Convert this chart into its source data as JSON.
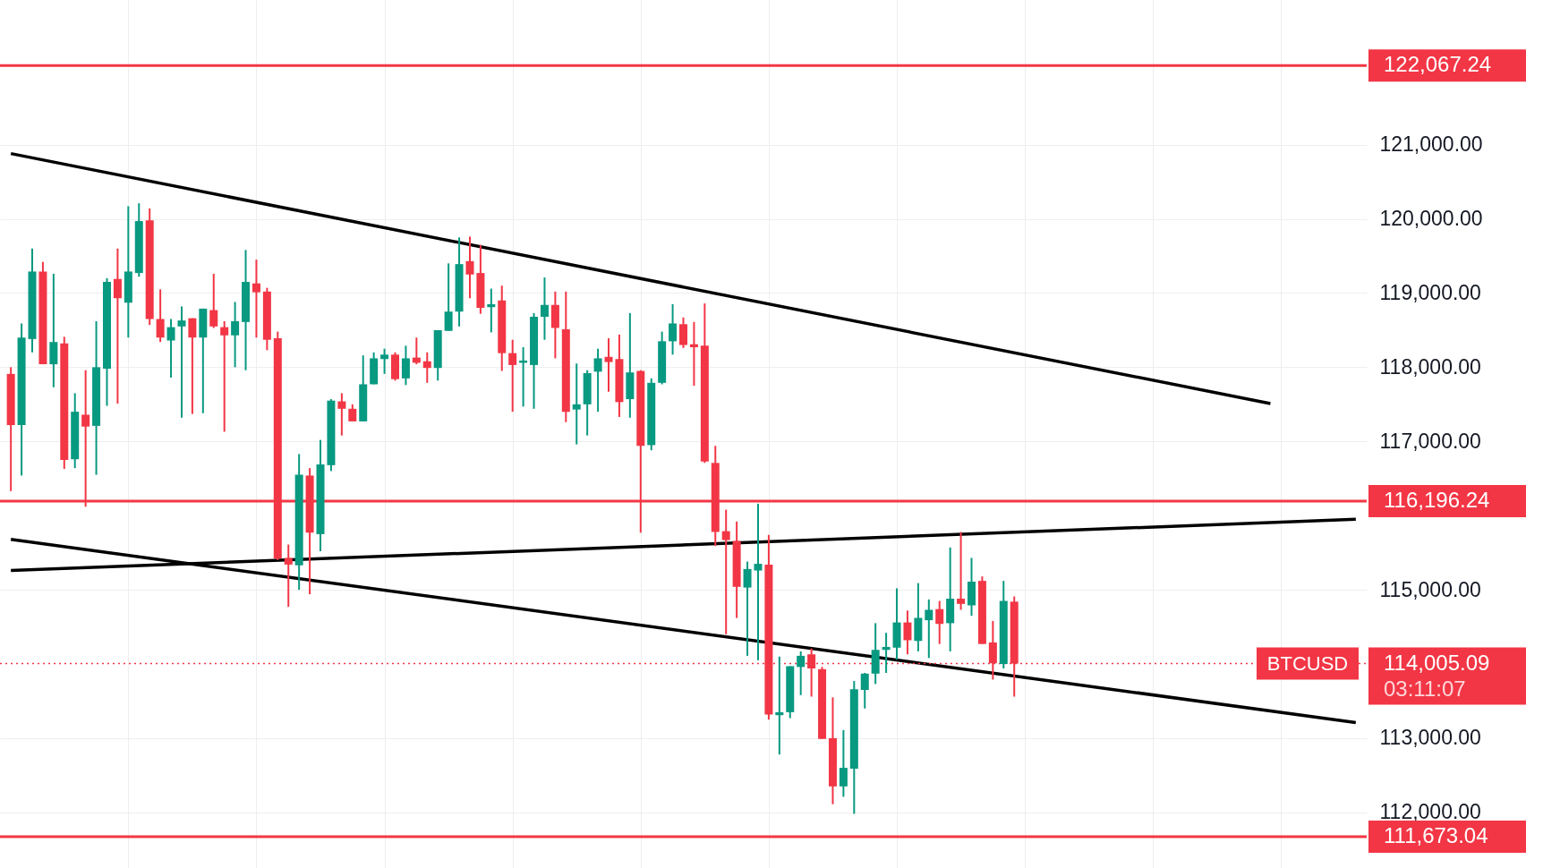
{
  "chart_data": {
    "type": "candlestick",
    "categories": [
      null,
      null,
      null,
      null,
      null,
      null,
      null,
      null,
      null,
      null,
      null,
      null,
      null,
      null,
      null,
      null,
      null,
      null,
      null,
      null,
      null,
      null,
      null,
      null,
      null,
      null,
      null,
      null,
      null,
      null,
      null,
      null,
      null,
      null,
      null,
      null,
      null,
      null,
      null,
      null,
      null,
      null,
      null,
      null,
      null,
      null,
      null,
      null,
      null,
      null,
      null,
      null,
      null,
      null,
      null,
      null,
      null,
      null,
      null,
      null,
      null,
      null,
      null,
      null,
      null,
      null,
      null,
      null,
      null,
      null,
      null,
      null,
      null,
      null,
      null,
      null,
      null,
      null,
      null,
      null,
      null,
      null,
      null,
      null,
      null,
      null,
      null,
      null,
      null,
      null,
      null,
      null,
      null,
      null,
      null,
      null,
      null,
      null,
      null,
      null,
      null,
      null,
      null,
      null,
      null,
      null,
      null,
      null,
      null,
      null,
      null,
      null,
      null,
      null,
      null,
      null,
      null,
      null,
      null,
      null,
      null,
      null,
      null,
      null,
      null,
      null,
      null
    ],
    "colors": [
      "#f23645",
      "#089981",
      "#089981",
      "#f23645",
      "#089981",
      "#f23645",
      "#089981",
      "#f23645",
      "#089981",
      "#089981",
      "#f23645",
      "#089981",
      "#089981",
      "#f23645",
      "#f23645",
      "#089981",
      "#089981",
      "#f23645",
      "#089981",
      "#f23645",
      "#f23645",
      "#089981",
      "#089981",
      "#f23645",
      "#f23645",
      "#f23645",
      "#f23645",
      "#089981",
      "#f23645",
      "#089981",
      "#089981",
      "#f23645",
      "#f23645",
      "#089981",
      "#089981",
      "#089981",
      "#f23645",
      "#089981",
      "#f23645",
      "#f23645",
      "#089981",
      "#089981",
      "#089981",
      "#f23645",
      "#f23645",
      "#089981",
      "#f23645",
      "#f23645",
      "#089981",
      "#089981",
      "#089981",
      "#f23645",
      "#f23645",
      "#089981",
      "#089981",
      "#089981",
      "#f23645",
      "#f23645",
      "#089981",
      "#f23645",
      "#089981",
      "#089981",
      "#089981",
      "#f23645",
      "#f23645",
      "#f23645",
      "#f23645",
      "#f23645",
      "#f23645",
      "#089981",
      "#089981",
      "#f23645",
      "#089981",
      "#089981",
      "#089981",
      "#f23645",
      "#f23645",
      "#f23645",
      "#089981",
      "#089981",
      "#089981",
      "#089981",
      "#089981",
      "#089981",
      "#f23645",
      "#089981",
      "#089981",
      "#f23645",
      "#089981",
      "#f23645",
      "#089981",
      "#f23645",
      "#f23645",
      "#089981",
      "#f23645",
      null,
      null,
      null,
      null,
      null,
      null,
      null,
      null,
      null,
      null,
      null,
      null,
      null,
      null,
      null,
      null,
      null,
      null,
      null,
      null,
      null,
      null,
      null,
      null,
      null,
      null,
      null,
      null,
      null,
      null,
      null,
      null
    ],
    "ohlc": [
      [
        117910,
        118000,
        116330,
        117220
      ],
      [
        117220,
        118590,
        116540,
        118400
      ],
      [
        118380,
        119600,
        118200,
        119290
      ],
      [
        119290,
        119420,
        118040,
        118040
      ],
      [
        118040,
        119260,
        117730,
        118340
      ],
      [
        118320,
        118410,
        116630,
        116750
      ],
      [
        116760,
        117650,
        116640,
        117400
      ],
      [
        117360,
        117960,
        116120,
        117200
      ],
      [
        117210,
        118620,
        116550,
        118000
      ],
      [
        117980,
        119200,
        117480,
        119150
      ],
      [
        119190,
        119600,
        117510,
        118930
      ],
      [
        118870,
        120170,
        118400,
        119290
      ],
      [
        119270,
        120210,
        119220,
        119970
      ],
      [
        119980,
        120140,
        118570,
        118650
      ],
      [
        118650,
        119050,
        118340,
        118400
      ],
      [
        118360,
        118650,
        117860,
        118540
      ],
      [
        118550,
        118820,
        117320,
        118630
      ],
      [
        118660,
        118660,
        117370,
        118400
      ],
      [
        118400,
        118790,
        117380,
        118790
      ],
      [
        118770,
        119260,
        118530,
        118550
      ],
      [
        118540,
        118620,
        117130,
        118430
      ],
      [
        118430,
        118880,
        118000,
        118620
      ],
      [
        118610,
        119580,
        117960,
        119150
      ],
      [
        119130,
        119450,
        118400,
        119010
      ],
      [
        119020,
        119070,
        118230,
        118370
      ],
      [
        118390,
        118480,
        115400,
        115420
      ],
      [
        115430,
        115610,
        114770,
        115340
      ],
      [
        115330,
        116830,
        115000,
        116550
      ],
      [
        116540,
        116640,
        114940,
        115770
      ],
      [
        115750,
        117020,
        115520,
        116690
      ],
      [
        116680,
        117570,
        116600,
        117550
      ],
      [
        117540,
        117650,
        117080,
        117440
      ],
      [
        117440,
        117500,
        117270,
        117270
      ],
      [
        117270,
        118160,
        117270,
        117770
      ],
      [
        117770,
        118200,
        117770,
        118120
      ],
      [
        118110,
        118250,
        117910,
        118170
      ],
      [
        118170,
        118200,
        117820,
        117840
      ],
      [
        117850,
        118290,
        117760,
        118120
      ],
      [
        118130,
        118400,
        118040,
        118060
      ],
      [
        118080,
        118200,
        117790,
        117990
      ],
      [
        117990,
        118500,
        117820,
        118500
      ],
      [
        118490,
        119400,
        118490,
        118750
      ],
      [
        118750,
        119750,
        118550,
        119390
      ],
      [
        119430,
        119760,
        118930,
        119250
      ],
      [
        119270,
        119650,
        118720,
        118800
      ],
      [
        118810,
        119060,
        118470,
        118850
      ],
      [
        118900,
        119100,
        117950,
        118190
      ],
      [
        118190,
        118370,
        117400,
        118030
      ],
      [
        118060,
        118270,
        117470,
        118090
      ],
      [
        118030,
        118730,
        117440,
        118680
      ],
      [
        118680,
        119210,
        118370,
        118840
      ],
      [
        118840,
        119020,
        118120,
        118530
      ],
      [
        118510,
        119020,
        117260,
        117400
      ],
      [
        117430,
        118050,
        116960,
        117500
      ],
      [
        117500,
        117960,
        117080,
        117920
      ],
      [
        117940,
        118250,
        117400,
        118120
      ],
      [
        118140,
        118390,
        117670,
        118070
      ],
      [
        118110,
        118440,
        117330,
        117530
      ],
      [
        117570,
        118730,
        117320,
        117930
      ],
      [
        117950,
        117960,
        115770,
        116940
      ],
      [
        116950,
        117850,
        116880,
        117790
      ],
      [
        117790,
        118480,
        117770,
        118350
      ],
      [
        118350,
        118850,
        118170,
        118590
      ],
      [
        118580,
        118670,
        118260,
        118300
      ],
      [
        118310,
        118610,
        117750,
        118270
      ],
      [
        118290,
        118860,
        116710,
        116730
      ],
      [
        116710,
        116940,
        115590,
        115780
      ],
      [
        115790,
        116080,
        114400,
        115670
      ],
      [
        115660,
        115920,
        114620,
        115040
      ],
      [
        115030,
        115380,
        114110,
        115280
      ],
      [
        115260,
        116160,
        114050,
        115350
      ],
      [
        115340,
        115740,
        113250,
        113320
      ],
      [
        113310,
        114100,
        112780,
        113350
      ],
      [
        113350,
        113970,
        113270,
        113970
      ],
      [
        113960,
        114170,
        113580,
        114110
      ],
      [
        114130,
        114210,
        113560,
        113940
      ],
      [
        113930,
        113960,
        112990,
        112990
      ],
      [
        113000,
        113550,
        112110,
        112350
      ],
      [
        112350,
        113110,
        112210,
        112600
      ],
      [
        112590,
        113770,
        111980,
        113660
      ],
      [
        113650,
        113880,
        113400,
        113870
      ],
      [
        113870,
        114550,
        113730,
        114190
      ],
      [
        114190,
        114420,
        113880,
        114230
      ],
      [
        114220,
        115020,
        114060,
        114560
      ],
      [
        114560,
        114720,
        114130,
        114320
      ],
      [
        114310,
        115090,
        114170,
        114620
      ],
      [
        114590,
        114870,
        114080,
        114730
      ],
      [
        114740,
        114850,
        114270,
        114540
      ],
      [
        114550,
        115570,
        114170,
        114880
      ],
      [
        114880,
        115780,
        114730,
        114810
      ],
      [
        114790,
        115430,
        114650,
        115110
      ],
      [
        115120,
        115180,
        114270,
        114270
      ],
      [
        114290,
        114580,
        113790,
        114010
      ],
      [
        114000,
        115120,
        113940,
        114850
      ],
      [
        114840,
        114910,
        113560,
        114005.09
      ],
      null,
      null,
      null,
      null,
      null,
      null,
      null,
      null,
      null,
      null,
      null,
      null,
      null,
      null,
      null,
      null,
      null,
      null,
      null,
      null,
      null,
      null,
      null,
      null,
      null,
      null,
      null,
      null,
      null,
      null,
      null,
      null
    ],
    "series": [
      {
        "type": "line",
        "color": "#000000",
        "values": [
          120880,
          null,
          null,
          null,
          null,
          null,
          null,
          null,
          null,
          null,
          null,
          null,
          null,
          null,
          null,
          null,
          null,
          null,
          null,
          null,
          null,
          null,
          null,
          null,
          null,
          null,
          null,
          null,
          null,
          null,
          null,
          null,
          null,
          null,
          null,
          null,
          null,
          null,
          null,
          null,
          null,
          null,
          null,
          null,
          null,
          null,
          null,
          null,
          null,
          null,
          null,
          null,
          null,
          null,
          null,
          null,
          null,
          null,
          null,
          null,
          null,
          null,
          null,
          null,
          null,
          null,
          null,
          null,
          null,
          null,
          null,
          null,
          null,
          null,
          null,
          null,
          null,
          null,
          null,
          null,
          null,
          null,
          null,
          null,
          null,
          null,
          null,
          null,
          null,
          null,
          null,
          null,
          null,
          null,
          null,
          null,
          null,
          null,
          null,
          null,
          null,
          null,
          null,
          null,
          null,
          null,
          null,
          null,
          null,
          null,
          null,
          null,
          null,
          null,
          null,
          null,
          null,
          null,
          117510,
          null,
          null,
          null,
          null,
          null,
          null,
          null,
          null
        ]
      },
      {
        "type": "line",
        "color": "#000000",
        "values": [
          115260,
          null,
          null,
          null,
          null,
          null,
          null,
          null,
          null,
          null,
          null,
          null,
          null,
          null,
          null,
          null,
          null,
          null,
          null,
          null,
          null,
          null,
          null,
          null,
          null,
          null,
          null,
          null,
          null,
          null,
          null,
          null,
          null,
          null,
          null,
          null,
          null,
          null,
          null,
          null,
          null,
          null,
          null,
          null,
          null,
          null,
          null,
          null,
          null,
          null,
          null,
          null,
          null,
          null,
          null,
          null,
          null,
          null,
          null,
          null,
          null,
          null,
          null,
          null,
          null,
          null,
          null,
          null,
          null,
          null,
          null,
          null,
          null,
          null,
          null,
          null,
          null,
          null,
          null,
          null,
          null,
          null,
          null,
          null,
          null,
          null,
          null,
          null,
          null,
          null,
          null,
          null,
          null,
          null,
          null,
          null,
          null,
          null,
          null,
          null,
          null,
          null,
          null,
          null,
          null,
          null,
          null,
          null,
          null,
          null,
          null,
          null,
          null,
          null,
          null,
          null,
          null,
          null,
          null,
          null,
          null,
          null,
          null,
          null,
          null,
          null,
          115950
        ]
      },
      {
        "type": "line",
        "color": "#000000",
        "values": [
          115680,
          null,
          null,
          null,
          null,
          null,
          null,
          null,
          null,
          null,
          null,
          null,
          null,
          null,
          null,
          null,
          null,
          null,
          null,
          null,
          null,
          null,
          null,
          null,
          null,
          null,
          null,
          null,
          null,
          null,
          null,
          null,
          null,
          null,
          null,
          null,
          null,
          null,
          null,
          null,
          null,
          null,
          null,
          null,
          null,
          null,
          null,
          null,
          null,
          null,
          null,
          null,
          null,
          null,
          null,
          null,
          null,
          null,
          null,
          null,
          null,
          null,
          null,
          null,
          null,
          null,
          null,
          null,
          null,
          null,
          null,
          null,
          null,
          null,
          null,
          null,
          null,
          null,
          null,
          null,
          null,
          null,
          null,
          null,
          null,
          null,
          null,
          null,
          null,
          null,
          null,
          null,
          null,
          null,
          null,
          null,
          null,
          null,
          null,
          null,
          null,
          null,
          null,
          null,
          null,
          null,
          null,
          null,
          null,
          null,
          null,
          null,
          null,
          null,
          null,
          null,
          null,
          null,
          null,
          null,
          null,
          null,
          null,
          null,
          null,
          null,
          113210
        ]
      }
    ],
    "ylim": [
      111250,
      122950
    ],
    "yticks": [
      {
        "value": 112000,
        "label": "112,000.00"
      },
      {
        "value": 113000,
        "label": "113,000.00"
      },
      {
        "value": 115000,
        "label": "115,000.00"
      },
      {
        "value": 117000,
        "label": "117,000.00"
      },
      {
        "value": 118000,
        "label": "118,000.00"
      },
      {
        "value": 119000,
        "label": "119,000.00"
      },
      {
        "value": 120000,
        "label": "120,000.00"
      },
      {
        "value": 121000,
        "label": "121,000.00"
      }
    ],
    "ref_lines": [
      {
        "axis": "y",
        "value": 122067.24,
        "label": "122,067.24",
        "color": "#f23645",
        "line_style": "solid"
      },
      {
        "axis": "y",
        "value": 116196.24,
        "label": "116,196.24",
        "color": "#f23645",
        "line_style": "solid"
      },
      {
        "axis": "y",
        "value": 111673.04,
        "label": "111,673.04",
        "color": "#f23645",
        "line_style": "solid"
      },
      {
        "axis": "y",
        "value": 114005.09,
        "label": "114,005.09",
        "color": "#f23645",
        "line_style": "dotted"
      }
    ],
    "annotations": [
      {
        "text": "BTCUSD",
        "y": 114005.09
      },
      "03:11:07"
    ],
    "grid": true,
    "tick_labels": "y"
  }
}
